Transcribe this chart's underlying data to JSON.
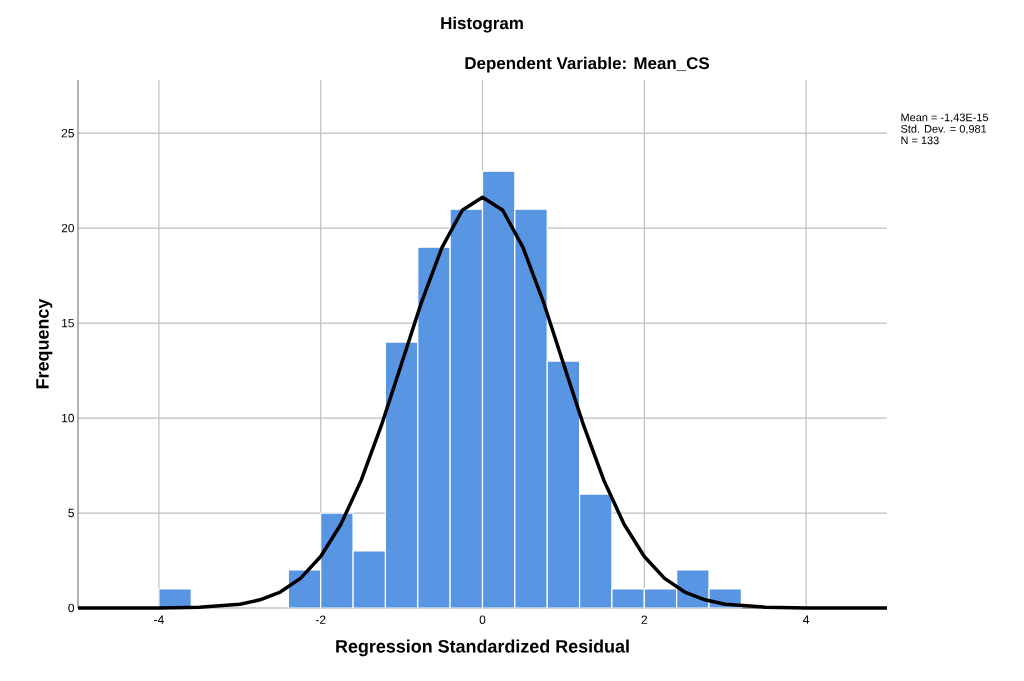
{
  "chart_data": {
    "type": "histogram",
    "title": "Histogram",
    "subtitle": "Dependent Variable: Mean_CS",
    "xlabel": "Regression Standardized Residual",
    "ylabel": "Frequency",
    "bins": [
      -4.0,
      -3.6,
      -3.2,
      -2.8,
      -2.4,
      -2.0,
      -1.6,
      -1.2,
      -0.8,
      -0.4,
      0.0,
      0.4,
      0.8,
      1.2,
      1.6,
      2.0,
      2.4,
      2.8,
      3.2
    ],
    "values": [
      1,
      0,
      0,
      0,
      2,
      5,
      3,
      14,
      19,
      21,
      23,
      21,
      13,
      6,
      1,
      1,
      2,
      1
    ],
    "color": "#5895e3",
    "series": [
      {
        "type": "line",
        "color": "#000000",
        "x": [
          -5,
          -4,
          -3.5,
          -3,
          -2.75,
          -2.5,
          -2.25,
          -2,
          -1.75,
          -1.5,
          -1.25,
          -1,
          -0.75,
          -0.5,
          -0.25,
          0,
          0.25,
          0.5,
          0.75,
          1,
          1.25,
          1.5,
          1.75,
          2,
          2.25,
          2.5,
          2.75,
          3,
          3.5,
          4,
          5
        ],
        "values": [
          0,
          0,
          0.04,
          0.2,
          0.43,
          0.84,
          1.56,
          2.71,
          4.41,
          6.72,
          9.61,
          12.87,
          16.15,
          18.99,
          20.94,
          21.63,
          20.94,
          18.99,
          16.15,
          12.87,
          9.61,
          6.72,
          4.41,
          2.71,
          1.56,
          0.84,
          0.43,
          0.2,
          0.04,
          0,
          0
        ]
      }
    ],
    "xlim": [
      -5,
      5
    ],
    "xticks": [
      -4,
      -2,
      0,
      2,
      4
    ],
    "ylim": [
      0,
      27.8
    ],
    "yticks": [
      0,
      5,
      10,
      15,
      20,
      25
    ],
    "grid": true,
    "annotations": [
      "Mean = -1,43E-15",
      "Std. Dev. = 0,981",
      "N = 133"
    ]
  }
}
